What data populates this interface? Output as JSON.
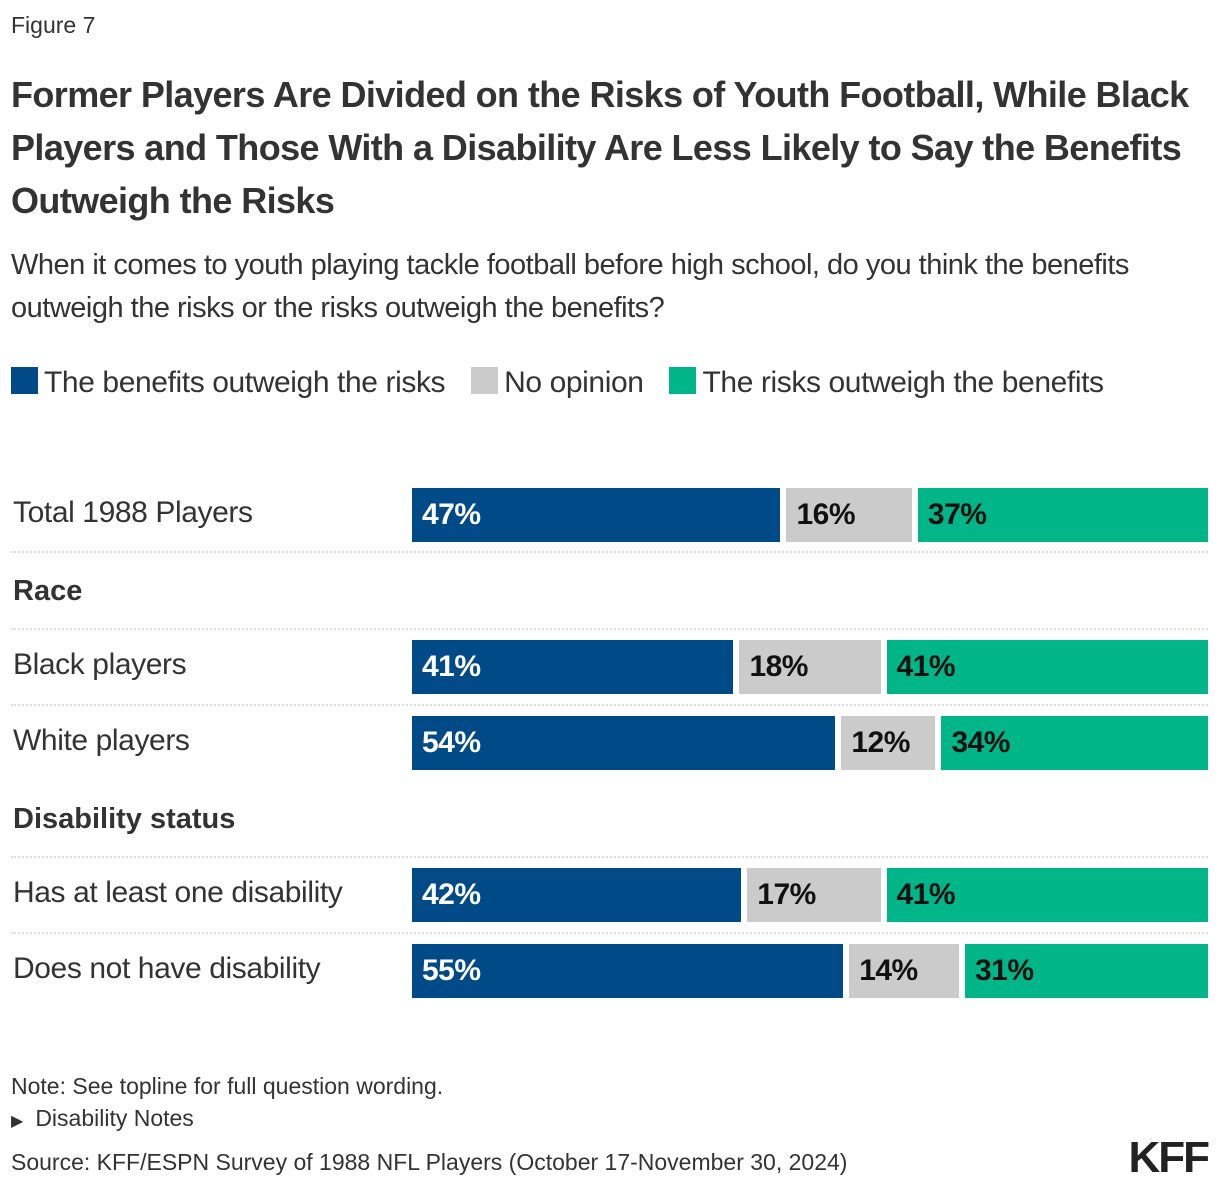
{
  "figure_label": "Figure 7",
  "title": "Former Players Are Divided on the Risks of Youth Football, While Black Players and Those With a Disability Are Less Likely to Say the Benefits Outweigh the Risks",
  "subtitle": "When it comes to youth playing tackle football before high school, do you think the benefits outweigh the risks or the risks outweigh the benefits?",
  "chart_data": {
    "type": "bar",
    "orientation": "horizontal",
    "stacked": true,
    "unit": "%",
    "legend_placement": "top",
    "series": [
      {
        "name": "The benefits outweigh the risks",
        "color": "#004b87",
        "values": [
          47,
          41,
          54,
          42,
          55
        ]
      },
      {
        "name": "No opinion",
        "color": "#cbcbcb",
        "values": [
          16,
          18,
          12,
          17,
          14
        ]
      },
      {
        "name": "The risks outweigh the benefits",
        "color": "#00b588",
        "values": [
          37,
          41,
          34,
          41,
          31
        ]
      }
    ],
    "categories": [
      "Total 1988 Players",
      "Black players",
      "White players",
      "Has at least one disability",
      "Does not have disability"
    ],
    "groups": [
      {
        "label": "Race",
        "before_category": 1
      },
      {
        "label": "Disability status",
        "before_category": 3
      }
    ],
    "data_labels": [
      [
        "47%",
        "16%",
        "37%"
      ],
      [
        "41%",
        "18%",
        "41%"
      ],
      [
        "54%",
        "12%",
        "34%"
      ],
      [
        "42%",
        "17%",
        "41%"
      ],
      [
        "55%",
        "14%",
        "31%"
      ]
    ]
  },
  "footer": {
    "note": "Note: See topline for full question wording.",
    "disability_notes": "Disability Notes",
    "source": "Source: KFF/ESPN Survey of 1988 NFL Players (October 17-November 30, 2024)",
    "logo": "KFF"
  }
}
